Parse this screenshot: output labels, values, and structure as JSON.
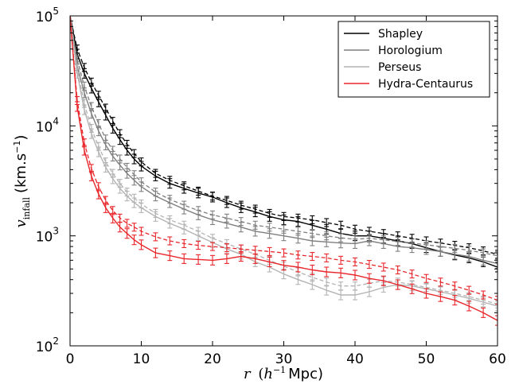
{
  "chart_data": {
    "type": "line",
    "title": "",
    "xlabel": "r (h⁻¹ Mpc)",
    "xlabel_parts": {
      "var": "r",
      "paren_open": "(",
      "h": "h",
      "exp": "−1",
      "unit": "Mpc)"
    },
    "ylabel": "v_infall (km.s⁻¹)",
    "ylabel_parts": {
      "var": "v",
      "sub": "infall",
      "unit": "(km.s",
      "exp": "−1",
      "close": ")"
    },
    "xlim": [
      0,
      60
    ],
    "ylim": [
      100,
      100000
    ],
    "yscale": "log",
    "xticks": [
      0,
      10,
      20,
      30,
      40,
      50,
      60
    ],
    "xtick_labels": [
      "0",
      "10",
      "20",
      "30",
      "40",
      "50",
      "60"
    ],
    "yticks": [
      100,
      1000,
      10000,
      100000
    ],
    "ytick_labels": [
      {
        "base": "10",
        "exp": "2"
      },
      {
        "base": "10",
        "exp": "3"
      },
      {
        "base": "10",
        "exp": "4"
      },
      {
        "base": "10",
        "exp": "5"
      }
    ],
    "grid": false,
    "legend": {
      "placement": "top-right"
    },
    "series": [
      {
        "name": "Shapley",
        "color": "#000000",
        "x": [
          0,
          1,
          2,
          3,
          4,
          5,
          6,
          7,
          8,
          9,
          10,
          12,
          14,
          16,
          18,
          20,
          22,
          24,
          26,
          28,
          30,
          32,
          34,
          36,
          38,
          40,
          42,
          44,
          46,
          48,
          50,
          52,
          54,
          56,
          58,
          60
        ],
        "y": [
          100000,
          45000,
          30000,
          22000,
          16500,
          12500,
          9500,
          7500,
          6000,
          5000,
          4300,
          3500,
          3000,
          2700,
          2450,
          2250,
          2000,
          1800,
          1650,
          1500,
          1400,
          1350,
          1250,
          1150,
          1050,
          1000,
          1000,
          950,
          900,
          850,
          780,
          720,
          670,
          630,
          580,
          520
        ],
        "dashed": {
          "x": [
            0,
            1,
            2,
            3,
            4,
            5,
            6,
            7,
            8,
            9,
            10,
            12,
            14,
            16,
            18,
            20,
            22,
            24,
            26,
            28,
            30,
            32,
            34,
            36,
            38,
            40,
            42,
            44,
            46,
            48,
            50,
            52,
            54,
            56,
            58,
            60
          ],
          "y": [
            100000,
            50000,
            34000,
            25000,
            19000,
            14500,
            11000,
            8500,
            6800,
            5600,
            4700,
            3700,
            3200,
            2850,
            2550,
            2300,
            2100,
            1900,
            1750,
            1600,
            1500,
            1450,
            1400,
            1320,
            1250,
            1150,
            1100,
            1050,
            1000,
            950,
            900,
            860,
            820,
            780,
            730,
            680
          ]
        }
      },
      {
        "name": "Horologium",
        "color": "#7f7f7f",
        "x": [
          0,
          1,
          2,
          3,
          4,
          5,
          6,
          7,
          8,
          9,
          10,
          12,
          14,
          16,
          18,
          20,
          22,
          24,
          26,
          28,
          30,
          32,
          34,
          36,
          38,
          40,
          42,
          44,
          46,
          48,
          50,
          52,
          54,
          56,
          58,
          60
        ],
        "y": [
          100000,
          35000,
          20000,
          13000,
          9000,
          6700,
          5300,
          4400,
          3700,
          3200,
          2800,
          2300,
          2000,
          1750,
          1550,
          1400,
          1300,
          1200,
          1100,
          1050,
          1000,
          950,
          900,
          880,
          860,
          850,
          900,
          850,
          800,
          780,
          750,
          720,
          680,
          650,
          600,
          560
        ],
        "dashed": {
          "x": [
            0,
            1,
            2,
            3,
            4,
            5,
            6,
            7,
            8,
            9,
            10,
            12,
            14,
            16,
            18,
            20,
            22,
            24,
            26,
            28,
            30,
            32,
            34,
            36,
            38,
            40,
            42,
            44,
            46,
            48,
            50,
            52,
            54,
            56,
            58,
            60
          ],
          "y": [
            100000,
            40000,
            23000,
            15000,
            10500,
            7600,
            6000,
            5000,
            4200,
            3600,
            3100,
            2500,
            2150,
            1900,
            1700,
            1550,
            1450,
            1350,
            1250,
            1200,
            1150,
            1100,
            1050,
            1000,
            960,
            930,
            950,
            920,
            890,
            860,
            830,
            800,
            770,
            740,
            700,
            660
          ]
        }
      },
      {
        "name": "Perseus",
        "color": "#b3b3b3",
        "x": [
          0,
          1,
          2,
          3,
          4,
          5,
          6,
          7,
          8,
          9,
          10,
          12,
          14,
          16,
          18,
          20,
          22,
          24,
          26,
          28,
          30,
          32,
          34,
          36,
          38,
          40,
          42,
          44,
          46,
          48,
          50,
          52,
          54,
          56,
          58,
          60
        ],
        "y": [
          100000,
          30000,
          14000,
          8500,
          5800,
          4200,
          3300,
          2700,
          2300,
          2000,
          1800,
          1500,
          1300,
          1150,
          1000,
          870,
          760,
          680,
          580,
          520,
          450,
          400,
          360,
          320,
          290,
          290,
          310,
          340,
          360,
          350,
          330,
          310,
          290,
          270,
          250,
          230
        ],
        "dashed": {
          "x": [
            0,
            1,
            2,
            3,
            4,
            5,
            6,
            7,
            8,
            9,
            10,
            12,
            14,
            16,
            18,
            20,
            22,
            24,
            26,
            28,
            30,
            32,
            34,
            36,
            38,
            40,
            42,
            44,
            46,
            48,
            50,
            52,
            54,
            56,
            58,
            60
          ],
          "y": [
            100000,
            33000,
            16000,
            9500,
            6500,
            4700,
            3700,
            3000,
            2500,
            2200,
            1950,
            1600,
            1400,
            1250,
            1100,
            950,
            850,
            760,
            680,
            600,
            530,
            470,
            420,
            380,
            350,
            350,
            370,
            390,
            380,
            360,
            340,
            320,
            300,
            280,
            260,
            240
          ]
        }
      },
      {
        "name": "Hydra-Centaurus",
        "color": "#e8262b",
        "x": [
          0,
          1,
          2,
          3,
          4,
          5,
          6,
          7,
          8,
          9,
          10,
          12,
          14,
          16,
          18,
          20,
          22,
          24,
          26,
          28,
          30,
          32,
          34,
          36,
          38,
          40,
          42,
          44,
          46,
          48,
          50,
          52,
          54,
          56,
          58,
          60
        ],
        "y": [
          100000,
          15000,
          6000,
          3500,
          2400,
          1800,
          1450,
          1200,
          1050,
          920,
          830,
          700,
          660,
          620,
          610,
          600,
          620,
          650,
          620,
          580,
          540,
          520,
          490,
          470,
          460,
          440,
          410,
          390,
          360,
          330,
          300,
          280,
          260,
          230,
          200,
          170
        ],
        "dashed": {
          "x": [
            0,
            1,
            2,
            3,
            4,
            5,
            6,
            7,
            8,
            9,
            10,
            12,
            14,
            16,
            18,
            20,
            22,
            24,
            26,
            28,
            30,
            32,
            34,
            36,
            38,
            40,
            42,
            44,
            46,
            48,
            50,
            52,
            54,
            56,
            58,
            60
          ],
          "y": [
            100000,
            17000,
            7000,
            4100,
            2800,
            2100,
            1700,
            1450,
            1300,
            1200,
            1100,
            980,
            900,
            850,
            820,
            800,
            780,
            760,
            740,
            720,
            700,
            670,
            650,
            630,
            600,
            580,
            550,
            520,
            490,
            450,
            410,
            380,
            350,
            320,
            290,
            260
          ]
        }
      }
    ]
  }
}
